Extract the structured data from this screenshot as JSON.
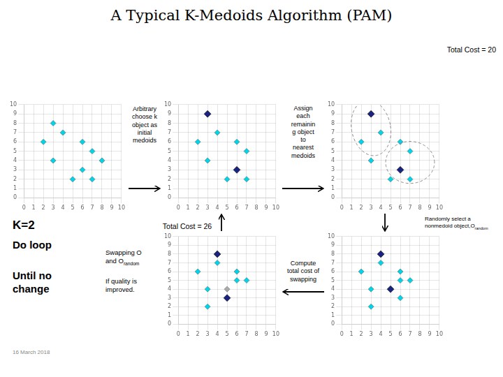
{
  "title": "A Typical K-Medoids Algorithm (PAM)",
  "annotations": [
    "Arbitrary\nchoose k\nobject as\ninitial\nmedoids",
    "Assign\neach\nremainin\ng object\nto\nnearest\nmedoids",
    "Total Cost = 20",
    "Total Cost = 26",
    "K=2",
    "Randomly select a\nnonmedoid object,O",
    "random",
    "Do loop",
    "Until no\nchange",
    "Swapping O\nand O",
    "random",
    "If quality is\nimproved.",
    "Compute\ntotal cost of\nswapping",
    "16 March 2018"
  ],
  "chart_data": [
    {
      "type": "scatter",
      "xlim": [
        0,
        10
      ],
      "ylim": [
        0,
        10
      ],
      "xticks": [
        0,
        1,
        2,
        3,
        4,
        5,
        6,
        7,
        8,
        9,
        10
      ],
      "yticks": [
        0,
        1,
        2,
        3,
        4,
        5,
        6,
        7,
        8,
        9,
        10
      ],
      "grid": true,
      "series": [
        {
          "color": "#00d4e8",
          "marker": "diamond",
          "x": [
            2,
            3,
            3,
            4,
            6,
            6,
            7,
            7,
            8,
            5
          ],
          "values": [
            6,
            8,
            4,
            7,
            6,
            3,
            5,
            2,
            4,
            2
          ]
        }
      ]
    },
    {
      "type": "scatter",
      "xlim": [
        0,
        10
      ],
      "ylim": [
        0,
        10
      ],
      "xticks": [
        0,
        1,
        2,
        3,
        4,
        5,
        6,
        7,
        8,
        9,
        10
      ],
      "yticks": [
        0,
        1,
        2,
        3,
        4,
        5,
        6,
        7,
        8,
        9,
        10
      ],
      "grid": true,
      "series": [
        {
          "color": "#00d4e8",
          "marker": "diamond",
          "x": [
            2,
            3,
            4,
            6,
            7,
            7,
            5
          ],
          "values": [
            6,
            4,
            7,
            6,
            5,
            2,
            2
          ]
        },
        {
          "color": "#1a237e",
          "marker": "diamond",
          "x": [
            3,
            6
          ],
          "values": [
            9,
            3
          ]
        }
      ]
    },
    {
      "type": "scatter",
      "xlim": [
        0,
        10
      ],
      "ylim": [
        0,
        10
      ],
      "xticks": [
        0,
        1,
        2,
        3,
        4,
        5,
        6,
        7,
        8,
        9,
        10
      ],
      "yticks": [
        0,
        1,
        2,
        3,
        4,
        5,
        6,
        7,
        8,
        9,
        10
      ],
      "grid": true,
      "series": [
        {
          "color": "#00d4e8",
          "marker": "diamond",
          "x": [
            2,
            3,
            4,
            6,
            7,
            7,
            5
          ],
          "values": [
            6,
            4,
            7,
            6,
            5,
            2,
            2
          ]
        },
        {
          "color": "#1a237e",
          "marker": "diamond",
          "x": [
            3,
            6
          ],
          "values": [
            9,
            3
          ]
        }
      ],
      "ellipses": [
        {
          "cx": 3.0,
          "cy": 7.5,
          "w": 4.0,
          "h": 6.0,
          "angle": 10
        },
        {
          "cx": 7.0,
          "cy": 3.8,
          "w": 5.0,
          "h": 4.5,
          "angle": 0
        }
      ]
    },
    {
      "type": "scatter",
      "xlim": [
        0,
        10
      ],
      "ylim": [
        0,
        10
      ],
      "xticks": [
        0,
        1,
        2,
        3,
        4,
        5,
        6,
        7,
        8,
        9,
        10
      ],
      "yticks": [
        0,
        1,
        2,
        3,
        4,
        5,
        6,
        7,
        8,
        9,
        10
      ],
      "grid": true,
      "series": [
        {
          "color": "#00d4e8",
          "marker": "diamond",
          "x": [
            2,
            3,
            4,
            6,
            7,
            6
          ],
          "values": [
            6,
            4,
            7,
            6,
            5,
            5
          ]
        },
        {
          "color": "#1a237e",
          "marker": "diamond",
          "x": [
            4,
            5
          ],
          "values": [
            8,
            3
          ]
        },
        {
          "color": "#aaaaaa",
          "marker": "diamond",
          "x": [
            5
          ],
          "values": [
            4
          ]
        },
        {
          "color": "#00d4e8",
          "marker": "diamond",
          "x": [
            3
          ],
          "values": [
            2
          ]
        }
      ]
    },
    {
      "type": "scatter",
      "xlim": [
        0,
        10
      ],
      "ylim": [
        0,
        10
      ],
      "xticks": [
        0,
        1,
        2,
        3,
        4,
        5,
        6,
        7,
        8,
        9,
        10
      ],
      "yticks": [
        0,
        1,
        2,
        3,
        4,
        5,
        6,
        7,
        8,
        9,
        10
      ],
      "grid": true,
      "series": [
        {
          "color": "#00d4e8",
          "marker": "diamond",
          "x": [
            2,
            3,
            4,
            6,
            7,
            6
          ],
          "values": [
            6,
            4,
            7,
            6,
            5,
            5
          ]
        },
        {
          "color": "#1a237e",
          "marker": "diamond",
          "x": [
            4,
            5
          ],
          "values": [
            8,
            4
          ]
        },
        {
          "color": "#00d4e8",
          "marker": "diamond",
          "x": [
            3,
            6
          ],
          "values": [
            2,
            3
          ]
        }
      ]
    }
  ]
}
